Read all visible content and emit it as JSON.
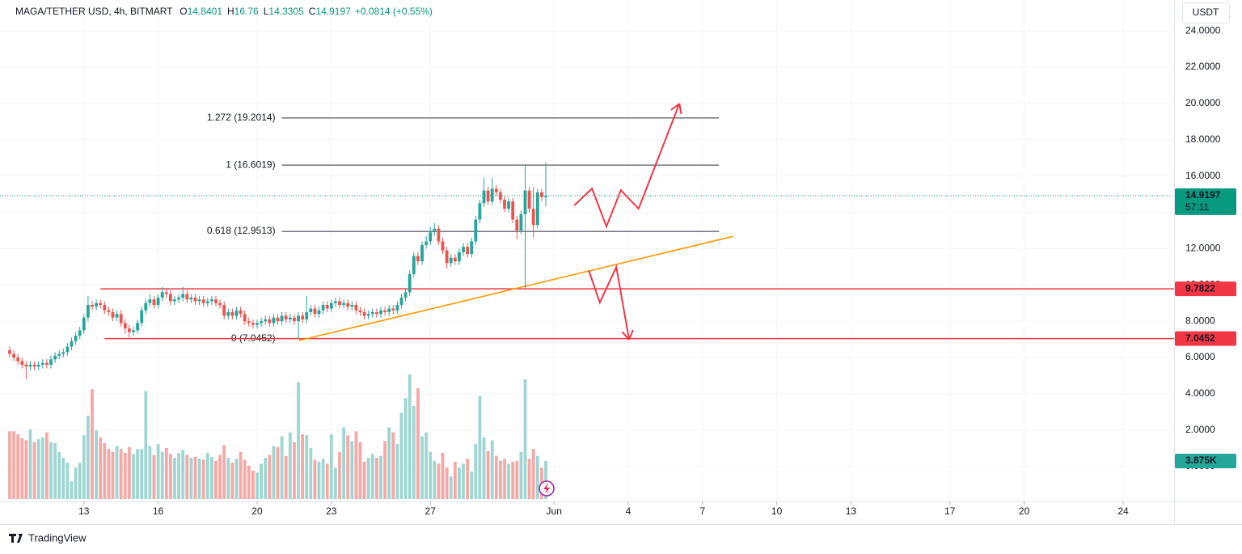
{
  "header": {
    "symbol": "MAGA/TETHER USD, 4h, BITMART",
    "ohlc_prefixes": [
      "O",
      "H",
      "L",
      "C"
    ],
    "change": "+0.0814 (+0.55%)"
  },
  "toolbar": {
    "currency": "USDT"
  },
  "footer": {
    "brand": "TradingView"
  },
  "chart_data": {
    "type": "candlestick",
    "colors": {
      "up": "#26a69a",
      "down": "#ef5350",
      "up_volume": "#9fd6d1",
      "down_volume": "#f5a8a6"
    },
    "open": [
      6.4,
      6.2,
      6.0,
      5.8,
      5.6,
      5.5,
      5.6,
      5.5,
      5.6,
      5.7,
      5.6,
      5.9,
      6.1,
      6.2,
      6.3,
      6.6,
      6.9,
      7.2,
      7.5,
      8.2,
      8.9,
      8.8,
      9.0,
      8.9,
      8.6,
      8.5,
      8.2,
      8.4,
      7.9,
      7.6,
      7.4,
      7.5,
      7.9,
      8.6,
      9.0,
      9.2,
      8.9,
      9.3,
      9.6,
      9.5,
      9.1,
      9.2,
      9.3,
      9.5,
      9.2,
      9.3,
      9.1,
      9.2,
      9.0,
      9.1,
      9.2,
      9.0,
      8.9,
      8.3,
      8.5,
      8.3,
      8.6,
      8.4,
      8.0,
      7.9,
      7.8,
      7.9,
      8.0,
      8.1,
      7.9,
      8.2,
      8.0,
      8.3,
      8.1,
      8.2,
      8.0,
      8.3,
      8.1,
      8.5,
      8.7,
      8.4,
      8.6,
      8.9,
      8.7,
      9.0,
      9.1,
      8.9,
      9.0,
      8.8,
      8.9,
      8.6,
      8.5,
      8.3,
      8.4,
      8.5,
      8.4,
      8.6,
      8.5,
      8.7,
      8.6,
      8.9,
      9.3,
      9.6,
      10.6,
      11.6,
      11.3,
      12.2,
      12.4,
      12.9,
      13.1,
      12.4,
      11.9,
      11.2,
      11.5,
      11.3,
      11.8,
      12.1,
      11.7,
      12.4,
      13.6,
      14.5,
      15.2,
      14.6,
      15.3,
      15.1,
      14.7,
      14.2,
      14.6,
      13.6,
      13.0,
      13.9,
      15.2,
      14.2,
      13.3,
      15.1,
      14.8401
    ],
    "high": [
      6.6,
      6.4,
      6.2,
      6.0,
      5.8,
      5.8,
      5.8,
      5.8,
      5.9,
      5.9,
      6.1,
      6.3,
      6.4,
      6.5,
      6.8,
      7.1,
      7.4,
      7.7,
      8.4,
      9.4,
      9.1,
      9.2,
      9.2,
      9.1,
      8.8,
      8.7,
      8.6,
      8.6,
      8.1,
      7.8,
      7.7,
      8.1,
      8.8,
      9.2,
      9.5,
      9.4,
      9.5,
      9.9,
      9.8,
      9.7,
      9.4,
      9.5,
      9.9,
      9.7,
      9.5,
      9.5,
      9.4,
      9.4,
      9.3,
      9.4,
      9.4,
      9.2,
      9.1,
      8.7,
      8.7,
      8.8,
      8.8,
      8.6,
      8.2,
      8.1,
      8.1,
      8.2,
      8.3,
      8.3,
      8.4,
      8.4,
      8.5,
      8.5,
      8.4,
      8.4,
      8.5,
      8.5,
      9.4,
      8.9,
      8.9,
      8.8,
      9.1,
      9.1,
      9.2,
      9.3,
      9.3,
      9.2,
      9.2,
      9.1,
      9.1,
      8.8,
      8.7,
      8.6,
      8.7,
      8.7,
      8.8,
      8.8,
      8.9,
      8.9,
      9.1,
      9.5,
      9.8,
      10.8,
      11.8,
      11.8,
      12.4,
      12.7,
      13.2,
      13.4,
      13.3,
      12.6,
      12.1,
      11.7,
      11.7,
      12.0,
      12.3,
      12.3,
      12.6,
      13.8,
      14.7,
      15.9,
      15.4,
      15.9,
      15.5,
      15.3,
      14.9,
      14.8,
      14.8,
      13.8,
      14.1,
      16.6,
      15.4,
      15.4,
      15.3,
      15.3,
      16.76
    ],
    "low": [
      6.0,
      5.8,
      5.6,
      5.4,
      4.8,
      5.3,
      5.3,
      5.3,
      5.4,
      5.4,
      5.4,
      5.7,
      5.9,
      6.0,
      6.1,
      6.4,
      6.7,
      7.0,
      7.3,
      8.0,
      8.6,
      8.6,
      8.7,
      8.4,
      8.3,
      8.0,
      8.0,
      7.7,
      7.3,
      7.1,
      7.2,
      7.3,
      7.7,
      8.4,
      8.8,
      8.7,
      8.7,
      9.1,
      9.3,
      8.9,
      8.9,
      9.0,
      9.1,
      9.0,
      9.0,
      8.9,
      8.9,
      8.8,
      8.8,
      8.9,
      8.8,
      8.7,
      8.1,
      8.1,
      8.1,
      8.1,
      8.2,
      7.8,
      7.7,
      7.6,
      7.6,
      7.7,
      7.8,
      7.7,
      7.7,
      7.8,
      7.8,
      7.9,
      7.9,
      7.8,
      7.0,
      7.9,
      7.9,
      8.3,
      8.2,
      8.2,
      8.4,
      8.5,
      8.5,
      8.8,
      8.7,
      8.7,
      8.6,
      8.6,
      8.4,
      8.3,
      8.1,
      8.1,
      8.2,
      8.2,
      8.2,
      8.3,
      8.3,
      8.4,
      8.4,
      8.7,
      9.1,
      9.4,
      10.4,
      11.1,
      11.1,
      12.0,
      12.2,
      12.7,
      12.2,
      11.7,
      10.9,
      11.0,
      11.1,
      11.1,
      11.6,
      11.5,
      11.5,
      12.2,
      13.4,
      14.3,
      14.4,
      14.4,
      14.9,
      14.5,
      14.0,
      14.0,
      13.4,
      12.5,
      12.8,
      9.8,
      14.0,
      12.6,
      13.1,
      14.6,
      14.3305
    ],
    "close": [
      6.2,
      6.0,
      5.8,
      5.6,
      5.5,
      5.6,
      5.5,
      5.6,
      5.7,
      5.6,
      5.9,
      6.1,
      6.2,
      6.3,
      6.6,
      6.9,
      7.2,
      7.5,
      8.2,
      8.9,
      8.8,
      9.0,
      8.9,
      8.6,
      8.5,
      8.2,
      8.4,
      7.9,
      7.6,
      7.4,
      7.5,
      7.9,
      8.6,
      9.0,
      9.2,
      8.9,
      9.3,
      9.6,
      9.5,
      9.1,
      9.2,
      9.3,
      9.5,
      9.2,
      9.3,
      9.1,
      9.2,
      9.0,
      9.1,
      9.2,
      9.0,
      8.9,
      8.3,
      8.5,
      8.3,
      8.6,
      8.4,
      8.0,
      7.9,
      7.8,
      7.9,
      8.0,
      8.1,
      7.9,
      8.2,
      8.0,
      8.3,
      8.1,
      8.2,
      8.0,
      8.3,
      8.1,
      8.5,
      8.7,
      8.4,
      8.6,
      8.9,
      8.7,
      9.0,
      9.1,
      8.9,
      9.0,
      8.8,
      8.9,
      8.6,
      8.5,
      8.3,
      8.4,
      8.5,
      8.4,
      8.6,
      8.5,
      8.7,
      8.6,
      8.9,
      9.3,
      9.6,
      10.6,
      11.6,
      11.3,
      12.2,
      12.4,
      12.9,
      13.1,
      12.4,
      11.9,
      11.2,
      11.5,
      11.3,
      11.8,
      12.1,
      11.7,
      12.4,
      13.6,
      14.5,
      15.2,
      14.6,
      15.3,
      15.1,
      14.7,
      14.2,
      14.6,
      13.6,
      13.0,
      13.9,
      15.2,
      14.2,
      13.3,
      15.1,
      14.8401,
      14.9197
    ],
    "volume": {
      "values": [
        6900,
        6900,
        6600,
        6200,
        6000,
        7100,
        5800,
        6100,
        6300,
        6800,
        5800,
        5700,
        4800,
        4200,
        3700,
        1800,
        3200,
        3700,
        6500,
        8500,
        11200,
        7000,
        6300,
        5700,
        5100,
        4800,
        5400,
        5100,
        4700,
        5300,
        4600,
        5100,
        5100,
        11000,
        5400,
        4500,
        5600,
        4800,
        5200,
        4600,
        4200,
        4700,
        5000,
        4500,
        4200,
        4300,
        4100,
        4000,
        4700,
        4300,
        3900,
        4500,
        5500,
        4200,
        3700,
        4100,
        4800,
        4000,
        3400,
        2900,
        2700,
        3600,
        4200,
        4500,
        5400,
        5300,
        6400,
        4400,
        6800,
        5800,
        11900,
        6600,
        6500,
        5200,
        4000,
        3800,
        4100,
        3600,
        6600,
        3200,
        4800,
        7300,
        6500,
        5900,
        6900,
        5800,
        3800,
        4200,
        4600,
        4200,
        4400,
        5900,
        7300,
        6800,
        5600,
        8800,
        10300,
        12700,
        9500,
        11300,
        6400,
        6800,
        4800,
        3900,
        3600,
        4700,
        3200,
        2300,
        3800,
        3200,
        3600,
        4100,
        2800,
        5600,
        10500,
        6300,
        4900,
        6000,
        4400,
        3900,
        4100,
        3600,
        3800,
        3900,
        4800,
        12200,
        4100,
        5100,
        4400,
        3200,
        3875
      ],
      "lim": [
        0,
        12700
      ],
      "last_label": "3.875K"
    },
    "countdown": "57:11",
    "xlim": [
      -2.35,
      282.35
    ],
    "xticks": [
      {
        "value": 18,
        "label": "13"
      },
      {
        "value": 36,
        "label": "16"
      },
      {
        "value": 60,
        "label": "20"
      },
      {
        "value": 78,
        "label": "23"
      },
      {
        "value": 102,
        "label": "27"
      },
      {
        "value": 132,
        "label": "Jun"
      },
      {
        "value": 150,
        "label": "4"
      },
      {
        "value": 168,
        "label": "7"
      },
      {
        "value": 186,
        "label": "10"
      },
      {
        "value": 204,
        "label": "13"
      },
      {
        "value": 228,
        "label": "17"
      },
      {
        "value": 246,
        "label": "20"
      },
      {
        "value": 270,
        "label": "24"
      }
    ],
    "ylim": [
      -1.93,
      25.7
    ],
    "yticks": [
      {
        "value": 24,
        "label": "24.0000"
      },
      {
        "value": 22,
        "label": "22.0000"
      },
      {
        "value": 20,
        "label": "20.0000"
      },
      {
        "value": 18,
        "label": "18.0000"
      },
      {
        "value": 16,
        "label": "16.0000"
      },
      {
        "value": 14,
        "label": "14.0000"
      },
      {
        "value": 12,
        "label": "12.0000"
      },
      {
        "value": 10,
        "label": "10.0000"
      },
      {
        "value": 8,
        "label": "8.0000"
      },
      {
        "value": 6,
        "label": "6.0000"
      },
      {
        "value": 4,
        "label": "4.0000"
      },
      {
        "value": 2,
        "label": "2.0000"
      },
      {
        "value": 0,
        "label": "0.0000"
      }
    ],
    "grid": true,
    "drawings": {
      "fib": {
        "x": [
          66,
          172
        ],
        "color": "#2a2e39",
        "levels": [
          {
            "value": 19.2014,
            "label": "1.272 (19.2014)"
          },
          {
            "value": 16.6019,
            "label": "1 (16.6019)"
          },
          {
            "value": 12.9513,
            "label": "0.618 (12.9513)"
          },
          {
            "value": 7.0452,
            "label": "0 (7.0452)"
          }
        ]
      },
      "hlines": [
        {
          "value": 9.7822,
          "from": 22,
          "color": "#f23645"
        },
        {
          "value": 7.0452,
          "from": 23,
          "color": "#f23645"
        }
      ],
      "trendline": {
        "color": "#ff9800",
        "points": [
          [
            70.2,
            6.94
          ],
          [
            175.5,
            12.68
          ]
        ]
      },
      "arrows": [
        {
          "color": "#f23645",
          "points": [
            [
              136.9,
              14.38
            ],
            [
              141.2,
              15.31
            ],
            [
              144.7,
              13.22
            ],
            [
              148.2,
              15.22
            ],
            [
              152.5,
              14.2
            ],
            [
              162.4,
              19.99
            ]
          ]
        },
        {
          "color": "#f23645",
          "points": [
            [
              140.4,
              10.81
            ],
            [
              143.1,
              9.03
            ],
            [
              147.1,
              10.99
            ],
            [
              150.2,
              6.98
            ]
          ]
        }
      ]
    }
  }
}
